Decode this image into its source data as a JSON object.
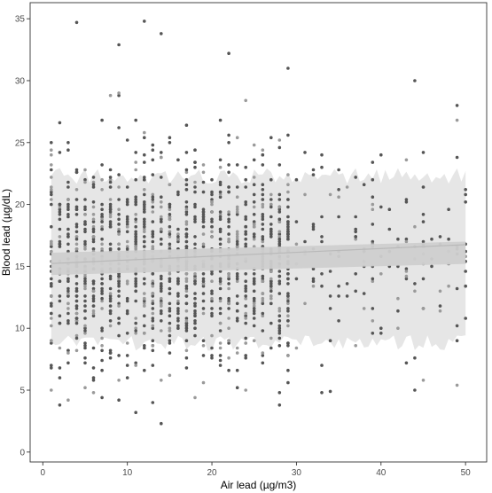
{
  "chart_data": {
    "type": "scatter",
    "xlabel": "Air lead (µg/m3)",
    "ylabel": "Blood lead (µg/dL)",
    "xlim": [
      -1.5,
      52.5
    ],
    "ylim": [
      -0.8,
      36.3
    ],
    "x_ticks": [
      0,
      10,
      20,
      30,
      40,
      50
    ],
    "y_ticks": [
      0,
      5,
      10,
      15,
      20,
      25,
      30,
      35
    ],
    "grid": false,
    "frame": true,
    "points_note": "dense cloud of ~1500 observations with x in [1,50] and y in [2.3,34.8]; outliers listed in highlights",
    "highlights": [
      {
        "x": 4,
        "y": 34.7
      },
      {
        "x": 12,
        "y": 34.8
      },
      {
        "x": 14,
        "y": 33.8
      },
      {
        "x": 9,
        "y": 32.9
      },
      {
        "x": 22,
        "y": 32.2
      },
      {
        "x": 29,
        "y": 31.0
      },
      {
        "x": 44,
        "y": 30.0
      },
      {
        "x": 14,
        "y": 2.3
      },
      {
        "x": 11,
        "y": 3.2
      },
      {
        "x": 2,
        "y": 3.8
      },
      {
        "x": 33,
        "y": 4.8
      },
      {
        "x": 34,
        "y": 4.9
      },
      {
        "x": 43,
        "y": 7.2
      },
      {
        "x": 49,
        "y": 28.0
      },
      {
        "x": 50,
        "y": 16.8
      }
    ],
    "regression": {
      "intercept": 15.2,
      "slope": 0.031,
      "x_range": [
        1,
        50
      ]
    },
    "confidence_band": {
      "lower_start": 14.3,
      "upper_start": 16.1,
      "lower_end": 15.2,
      "upper_end": 17.0
    },
    "prediction_band": {
      "lower": 8.8,
      "upper": 22.3,
      "x_range": [
        1,
        50
      ]
    },
    "colors": {
      "points": "#555555",
      "points_light": "#9a9a9a",
      "prediction_band": "#e6e6e6",
      "confidence_band": "#cfcfcf",
      "regression_line": "#b9b9b9",
      "frame": "#333333"
    }
  }
}
